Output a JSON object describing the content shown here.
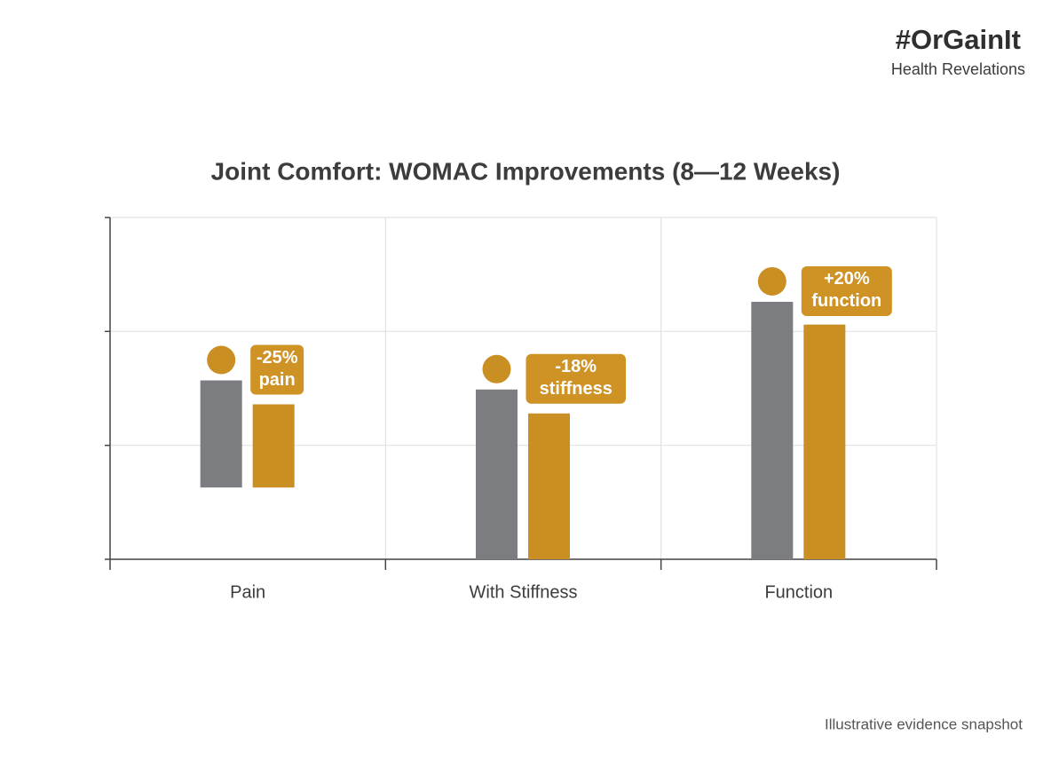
{
  "brand": {
    "title": "#OrGainIt",
    "subtitle": "Health Revelations"
  },
  "chart_data": {
    "type": "bar",
    "title": "Joint Comfort: WOMAC Improvements (8—12 Weeks)",
    "categories": [
      "Pain",
      "With Stiffness",
      "Function"
    ],
    "series": [
      {
        "color": "#7c7d80",
        "values": [
          1.57,
          1.49,
          2.26
        ],
        "bases": [
          0.63,
          0,
          0
        ]
      },
      {
        "color": "#c98f22",
        "values": [
          1.36,
          1.28,
          2.06
        ],
        "bases": [
          0.63,
          0,
          0
        ]
      }
    ],
    "annotations": [
      [
        "-25%",
        "pain"
      ],
      [
        "-18%",
        "stiffness"
      ],
      [
        "+20%",
        "function"
      ]
    ],
    "ylim": [
      0,
      3
    ],
    "yticks": [
      0,
      1,
      2,
      3
    ],
    "grid": true
  },
  "footer": "Illustrative evidence snapshot"
}
